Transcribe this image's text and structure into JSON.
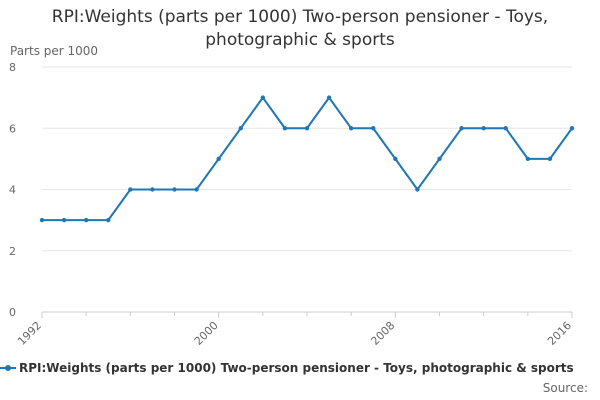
{
  "chart_data": {
    "type": "line",
    "title": "RPI:Weights (parts per 1000) Two-person pensioner - Toys, photographic & sports",
    "ylabel": "Parts per 1000",
    "xlabel": "",
    "x": [
      1992,
      1993,
      1994,
      1995,
      1996,
      1997,
      1998,
      1999,
      2000,
      2001,
      2002,
      2003,
      2004,
      2005,
      2006,
      2007,
      2008,
      2009,
      2010,
      2011,
      2012,
      2013,
      2014,
      2015,
      2016
    ],
    "series": [
      {
        "name": "RPI:Weights (parts per 1000) Two-person pensioner - Toys, photographic & sports",
        "values": [
          3,
          3,
          3,
          3,
          4,
          4,
          4,
          4,
          5,
          6,
          7,
          6,
          6,
          7,
          6,
          6,
          5,
          4,
          5,
          6,
          6,
          6,
          5,
          5,
          6
        ],
        "color": "#1f77b4"
      }
    ],
    "xlim": [
      1992,
      2016
    ],
    "ylim": [
      0,
      8
    ],
    "x_ticks": [
      1992,
      2000,
      2008,
      2016
    ],
    "y_ticks": [
      0,
      2,
      4,
      6,
      8
    ],
    "grid": true,
    "legend": "bottom"
  },
  "source_label": "Source:"
}
